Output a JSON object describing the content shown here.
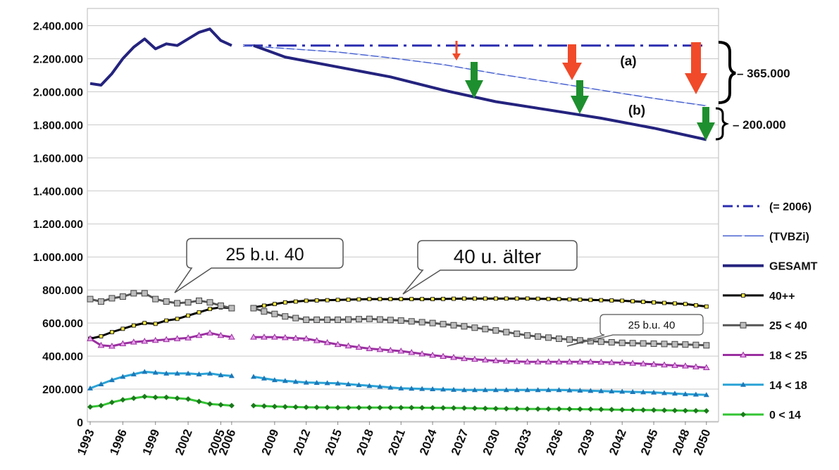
{
  "chart_data": {
    "type": "line",
    "ylim": [
      0,
      2500000
    ],
    "xlim": [
      1993,
      2050
    ],
    "yticks": [
      0,
      200000,
      400000,
      600000,
      800000,
      1000000,
      1200000,
      1400000,
      1600000,
      1800000,
      2000000,
      2200000,
      2400000
    ],
    "ytick_labels": [
      "0",
      "200.000",
      "400.000",
      "600.000",
      "800.000",
      "1.000.000",
      "1.200.000",
      "1.400.000",
      "1.600.000",
      "1.800.000",
      "2.000.000",
      "2.200.000",
      "2.400.000"
    ],
    "xticks": [
      1993,
      1996,
      1999,
      2002,
      2005,
      2006,
      2009,
      2012,
      2015,
      2018,
      2021,
      2024,
      2027,
      2030,
      2033,
      2036,
      2039,
      2042,
      2045,
      2048,
      2050
    ],
    "grid": true,
    "legend_position": "right",
    "series": [
      {
        "name": "(= 2006)",
        "color": "#2b2db0",
        "style": "dashdot",
        "marker": "none",
        "x": [
          2006,
          2050
        ],
        "y": [
          2280000,
          2280000
        ]
      },
      {
        "name": "(TVBZi)",
        "color": "#4a63d0",
        "style": "solid-thin",
        "marker": "dash",
        "x": [
          2006,
          2010,
          2015,
          2020,
          2025,
          2030,
          2035,
          2040,
          2045,
          2050
        ],
        "y": [
          2280000,
          2262000,
          2240000,
          2205000,
          2165000,
          2110000,
          2060000,
          2010000,
          1960000,
          1915000
        ]
      },
      {
        "name": "GESAMT",
        "color": "#24237e",
        "style": "solid-thick",
        "marker": "none",
        "x": [
          1993,
          1994,
          1995,
          1996,
          1997,
          1998,
          1999,
          2000,
          2001,
          2002,
          2003,
          2004,
          2005,
          2006,
          2007,
          2010,
          2015,
          2020,
          2025,
          2030,
          2035,
          2040,
          2045,
          2050
        ],
        "y": [
          2050000,
          2040000,
          2110000,
          2200000,
          2270000,
          2320000,
          2260000,
          2290000,
          2280000,
          2320000,
          2360000,
          2380000,
          2310000,
          2280000,
          2280000,
          2210000,
          2150000,
          2090000,
          2010000,
          1940000,
          1890000,
          1840000,
          1780000,
          1710000
        ]
      },
      {
        "name": "40++",
        "color": "#000000",
        "style": "solid",
        "marker": "square-yellow",
        "x": [
          1993,
          1994,
          1995,
          1996,
          1997,
          1998,
          1999,
          2000,
          2001,
          2002,
          2003,
          2004,
          2005,
          2006,
          2007,
          2008,
          2009,
          2010,
          2012,
          2015,
          2018,
          2021,
          2024,
          2027,
          2030,
          2033,
          2036,
          2039,
          2042,
          2045,
          2048,
          2050
        ],
        "y": [
          505000,
          520000,
          545000,
          565000,
          585000,
          600000,
          595000,
          615000,
          625000,
          645000,
          665000,
          685000,
          695000,
          690000,
          695000,
          705000,
          715000,
          725000,
          735000,
          740000,
          745000,
          745000,
          745000,
          748000,
          748000,
          748000,
          745000,
          740000,
          735000,
          725000,
          715000,
          700000
        ]
      },
      {
        "name": "25 < 40",
        "color": "#555555",
        "style": "solid",
        "marker": "square-gray",
        "x": [
          1993,
          1994,
          1995,
          1996,
          1997,
          1998,
          1999,
          2000,
          2001,
          2002,
          2003,
          2004,
          2005,
          2006,
          2007,
          2008,
          2009,
          2010,
          2012,
          2015,
          2018,
          2021,
          2024,
          2027,
          2030,
          2033,
          2036,
          2039,
          2042,
          2045,
          2048,
          2050
        ],
        "y": [
          745000,
          730000,
          750000,
          760000,
          780000,
          780000,
          745000,
          730000,
          720000,
          725000,
          735000,
          725000,
          705000,
          690000,
          690000,
          670000,
          655000,
          640000,
          620000,
          620000,
          625000,
          615000,
          600000,
          580000,
          555000,
          525000,
          505000,
          490000,
          480000,
          475000,
          470000,
          465000
        ]
      },
      {
        "name": "18 < 25",
        "color": "#9a2fa0",
        "style": "solid",
        "marker": "triangle-pink",
        "x": [
          1993,
          1994,
          1995,
          1996,
          1997,
          1998,
          1999,
          2000,
          2001,
          2002,
          2003,
          2004,
          2005,
          2006,
          2007,
          2009,
          2012,
          2015,
          2018,
          2021,
          2024,
          2027,
          2030,
          2033,
          2036,
          2039,
          2042,
          2045,
          2048,
          2050
        ],
        "y": [
          505000,
          465000,
          460000,
          475000,
          485000,
          490000,
          495000,
          500000,
          505000,
          510000,
          525000,
          540000,
          525000,
          515000,
          515000,
          515000,
          505000,
          470000,
          445000,
          430000,
          405000,
          385000,
          372000,
          365000,
          365000,
          365000,
          360000,
          350000,
          340000,
          330000
        ]
      },
      {
        "name": "14 < 18",
        "color": "#2aa3d6",
        "style": "solid",
        "marker": "triangle-blue",
        "x": [
          1993,
          1994,
          1995,
          1996,
          1997,
          1998,
          1999,
          2000,
          2001,
          2002,
          2003,
          2004,
          2005,
          2006,
          2007,
          2009,
          2012,
          2015,
          2018,
          2021,
          2024,
          2027,
          2030,
          2033,
          2036,
          2039,
          2042,
          2045,
          2048,
          2050
        ],
        "y": [
          205000,
          230000,
          255000,
          275000,
          290000,
          305000,
          300000,
          295000,
          295000,
          295000,
          290000,
          295000,
          285000,
          280000,
          275000,
          255000,
          240000,
          235000,
          220000,
          205000,
          200000,
          195000,
          195000,
          195000,
          195000,
          190000,
          185000,
          180000,
          170000,
          165000
        ]
      },
      {
        "name": "0 < 14",
        "color": "#33c433",
        "style": "solid",
        "marker": "diamond-green",
        "x": [
          1993,
          1994,
          1995,
          1996,
          1997,
          1998,
          1999,
          2000,
          2001,
          2002,
          2003,
          2004,
          2005,
          2006,
          2007,
          2009,
          2012,
          2015,
          2018,
          2021,
          2024,
          2027,
          2030,
          2033,
          2036,
          2039,
          2042,
          2045,
          2048,
          2050
        ],
        "y": [
          92000,
          100000,
          120000,
          135000,
          145000,
          155000,
          150000,
          150000,
          145000,
          140000,
          125000,
          110000,
          105000,
          100000,
          100000,
          95000,
          90000,
          88000,
          88000,
          88000,
          87000,
          85000,
          82000,
          80000,
          80000,
          78000,
          75000,
          73000,
          70000,
          68000
        ]
      }
    ],
    "annotations": {
      "callout_1": "25 b.u. 40",
      "callout_2": "40 u. älter",
      "callout_3": "25 b.u. 40",
      "label_a": "(a)",
      "label_b": "(b)",
      "brace_1": "– 365.000",
      "brace_2": "– 200.000"
    }
  }
}
